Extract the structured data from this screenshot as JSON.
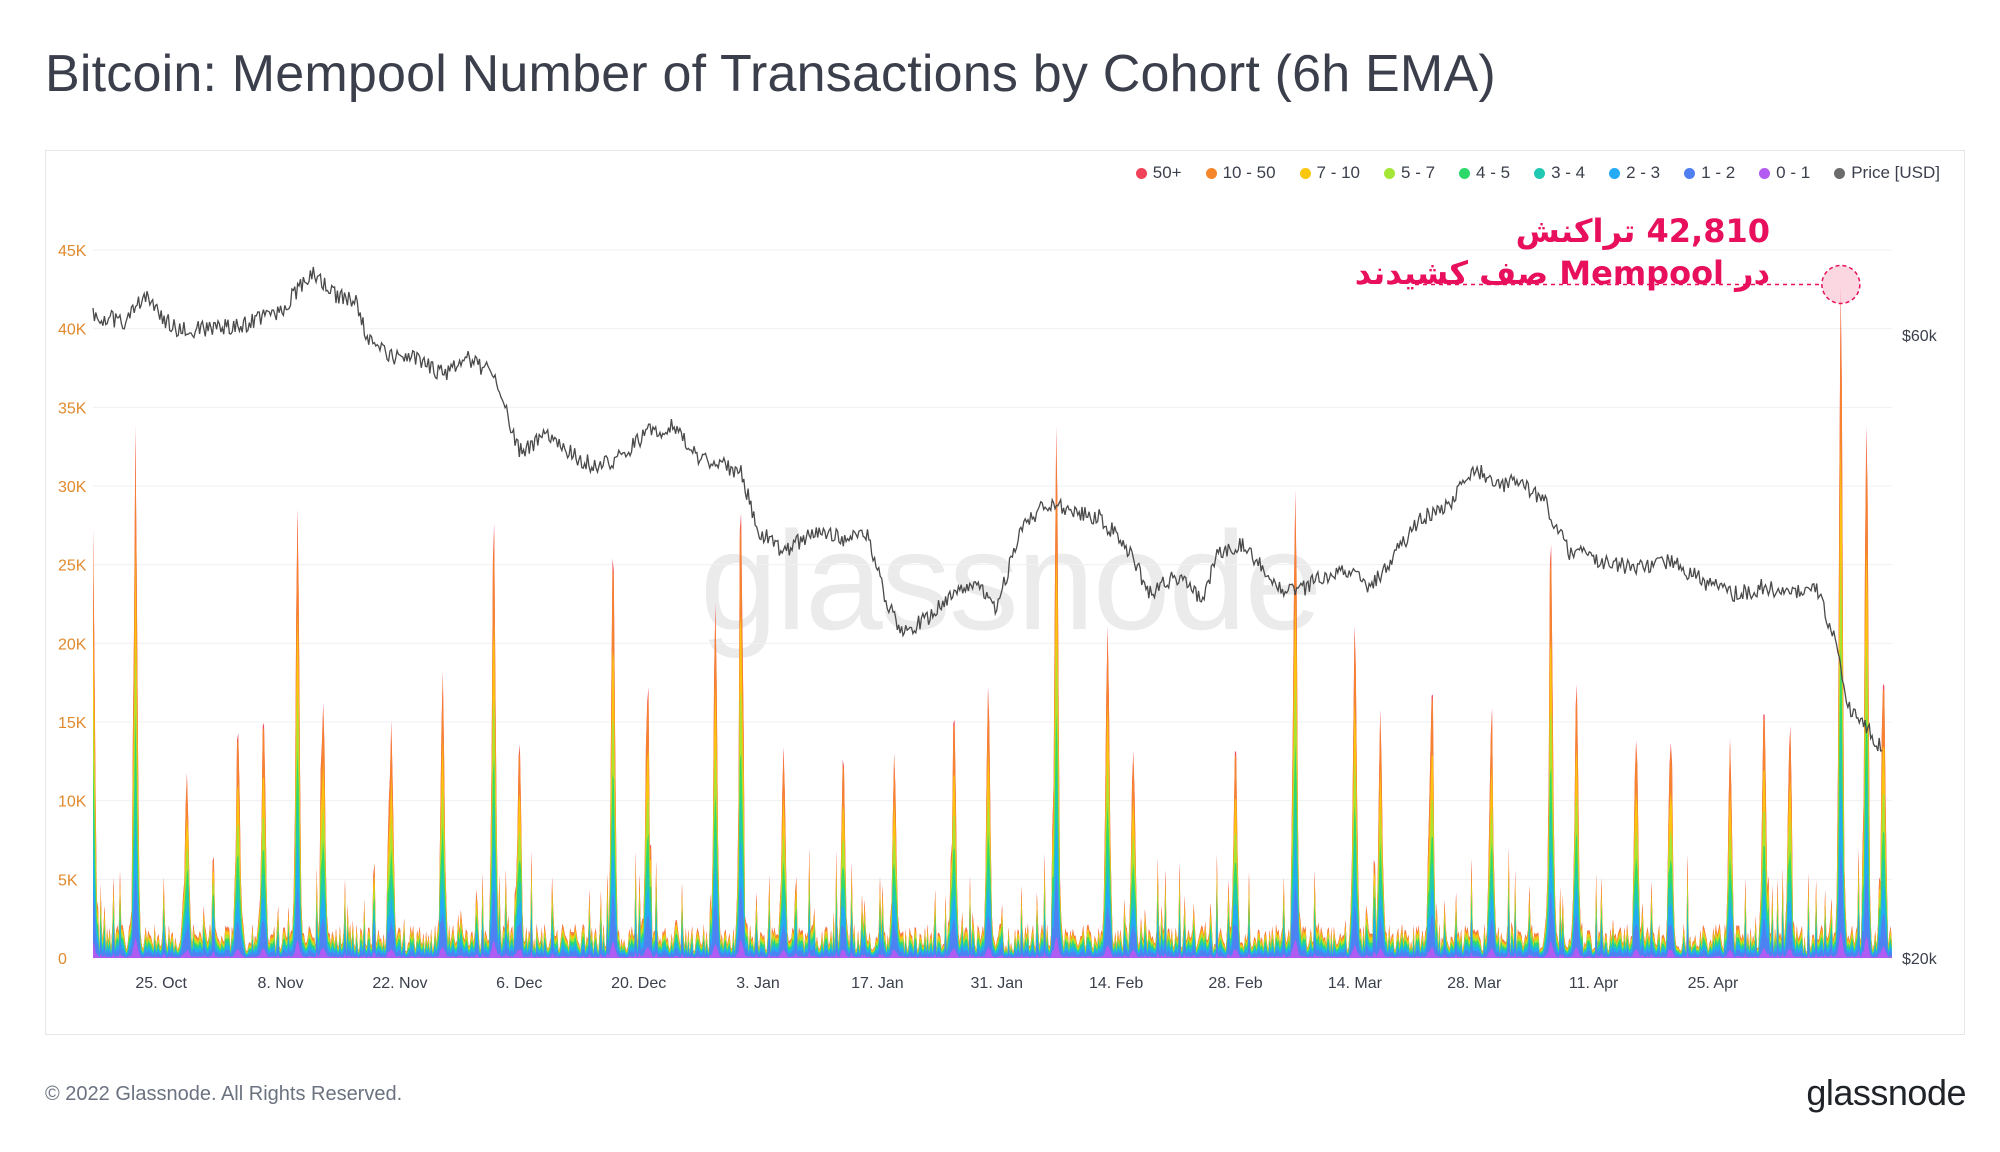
{
  "title": "Bitcoin: Mempool Number of Transactions by Cohort (6h EMA)",
  "footer": {
    "copyright": "© 2022 Glassnode. All Rights Reserved.",
    "logo": "glassnode"
  },
  "watermark": "glassnode",
  "annotation": {
    "line1": "42,810 تراکنش",
    "line2": "در Mempool صف کشیدند"
  },
  "legend": [
    {
      "label": "50+",
      "color": "#f0435a"
    },
    {
      "label": "10 - 50",
      "color": "#f5862c"
    },
    {
      "label": "7 - 10",
      "color": "#f9c80e"
    },
    {
      "label": "5 - 7",
      "color": "#a3e635"
    },
    {
      "label": "4 - 5",
      "color": "#2bd96b"
    },
    {
      "label": "3 - 4",
      "color": "#21c9b3"
    },
    {
      "label": "2 - 3",
      "color": "#25aaf5"
    },
    {
      "label": "1 - 2",
      "color": "#4f7ff0"
    },
    {
      "label": "0 - 1",
      "color": "#b35af0"
    },
    {
      "label": "Price [USD]",
      "color": "#6b6b6b"
    }
  ],
  "chart_data": {
    "type": "area",
    "left_axis": {
      "ticks": [
        "0",
        "5K",
        "10K",
        "15K",
        "20K",
        "25K",
        "30K",
        "35K",
        "40K",
        "45K"
      ],
      "range": [
        0,
        45000
      ],
      "color": "#e08a2e"
    },
    "right_axis": {
      "ticks": [
        "$20k",
        "$60k"
      ],
      "scale": "log"
    },
    "x_ticks": [
      "25. Oct",
      "8. Nov",
      "22. Nov",
      "6. Dec",
      "20. Dec",
      "3. Jan",
      "17. Jan",
      "31. Jan",
      "14. Feb",
      "28. Feb",
      "14. Mar",
      "28. Mar",
      "11. Apr",
      "25. Apr"
    ],
    "peak": {
      "date": "2022-05-09",
      "value": 42810
    },
    "spikes": [
      {
        "day": 0,
        "value": 25500
      },
      {
        "day": 5,
        "value": 28500
      },
      {
        "day": 11,
        "value": 10000
      },
      {
        "day": 17,
        "value": 14000
      },
      {
        "day": 20,
        "value": 14500
      },
      {
        "day": 24,
        "value": 27500
      },
      {
        "day": 27,
        "value": 15500
      },
      {
        "day": 35,
        "value": 14000
      },
      {
        "day": 41,
        "value": 17000
      },
      {
        "day": 47,
        "value": 26000
      },
      {
        "day": 50,
        "value": 13000
      },
      {
        "day": 61,
        "value": 25000
      },
      {
        "day": 65,
        "value": 15000
      },
      {
        "day": 73,
        "value": 21000
      },
      {
        "day": 76,
        "value": 26500
      },
      {
        "day": 81,
        "value": 13000
      },
      {
        "day": 88,
        "value": 11500
      },
      {
        "day": 94,
        "value": 12000
      },
      {
        "day": 101,
        "value": 14500
      },
      {
        "day": 105,
        "value": 15500
      },
      {
        "day": 113,
        "value": 33500
      },
      {
        "day": 119,
        "value": 20500
      },
      {
        "day": 122,
        "value": 12000
      },
      {
        "day": 134,
        "value": 12000
      },
      {
        "day": 141,
        "value": 26500
      },
      {
        "day": 148,
        "value": 20500
      },
      {
        "day": 151,
        "value": 14500
      },
      {
        "day": 157,
        "value": 15000
      },
      {
        "day": 164,
        "value": 14000
      },
      {
        "day": 171,
        "value": 25500
      },
      {
        "day": 174,
        "value": 16500
      },
      {
        "day": 181,
        "value": 13000
      },
      {
        "day": 185,
        "value": 13000
      },
      {
        "day": 192,
        "value": 12000
      },
      {
        "day": 196,
        "value": 15500
      },
      {
        "day": 199,
        "value": 13000
      },
      {
        "day": 205,
        "value": 42810
      },
      {
        "day": 208,
        "value": 33000
      },
      {
        "day": 210,
        "value": 17000
      }
    ],
    "price_series": [
      [
        0,
        62000
      ],
      [
        4,
        61500
      ],
      [
        6,
        64500
      ],
      [
        8,
        62000
      ],
      [
        10,
        60500
      ],
      [
        14,
        60800
      ],
      [
        18,
        61200
      ],
      [
        22,
        62500
      ],
      [
        24,
        65000
      ],
      [
        26,
        67000
      ],
      [
        28,
        64500
      ],
      [
        31,
        63500
      ],
      [
        32,
        60000
      ],
      [
        35,
        57800
      ],
      [
        38,
        57500
      ],
      [
        41,
        56000
      ],
      [
        44,
        57500
      ],
      [
        47,
        56000
      ],
      [
        49,
        51000
      ],
      [
        50,
        48800
      ],
      [
        53,
        50200
      ],
      [
        56,
        48700
      ],
      [
        59,
        47500
      ],
      [
        62,
        48500
      ],
      [
        65,
        50500
      ],
      [
        68,
        51000
      ],
      [
        71,
        48500
      ],
      [
        73,
        48000
      ],
      [
        76,
        47000
      ],
      [
        78,
        42500
      ],
      [
        81,
        41000
      ],
      [
        85,
        42500
      ],
      [
        88,
        41800
      ],
      [
        91,
        42000
      ],
      [
        93,
        37500
      ],
      [
        95,
        35500
      ],
      [
        98,
        36500
      ],
      [
        101,
        38000
      ],
      [
        104,
        38500
      ],
      [
        106,
        37000
      ],
      [
        109,
        43000
      ],
      [
        112,
        44500
      ],
      [
        115,
        44000
      ],
      [
        118,
        43500
      ],
      [
        121,
        41500
      ],
      [
        124,
        38000
      ],
      [
        127,
        39200
      ],
      [
        130,
        37500
      ],
      [
        132,
        41000
      ],
      [
        135,
        41500
      ],
      [
        138,
        39000
      ],
      [
        141,
        38000
      ],
      [
        144,
        39200
      ],
      [
        147,
        39500
      ],
      [
        150,
        38500
      ],
      [
        153,
        41000
      ],
      [
        156,
        43500
      ],
      [
        159,
        44500
      ],
      [
        162,
        47500
      ],
      [
        165,
        46000
      ],
      [
        167,
        46500
      ],
      [
        170,
        45000
      ],
      [
        173,
        41000
      ],
      [
        176,
        40500
      ],
      [
        179,
        40000
      ],
      [
        182,
        39800
      ],
      [
        185,
        40300
      ],
      [
        187,
        39500
      ],
      [
        190,
        38500
      ],
      [
        193,
        38000
      ],
      [
        196,
        38500
      ],
      [
        199,
        37900
      ],
      [
        202,
        38500
      ],
      [
        204,
        35500
      ],
      [
        206,
        31000
      ],
      [
        208,
        30000
      ],
      [
        210,
        28800
      ]
    ]
  }
}
